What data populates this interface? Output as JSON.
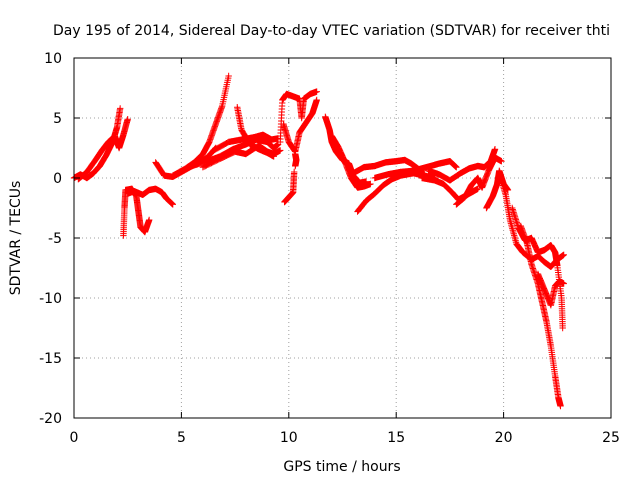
{
  "chart_data": {
    "type": "scatter",
    "title": "Day 195 of 2014, Sidereal Day-to-day VTEC variation (SDTVAR) for receiver thti",
    "xlabel": "GPS time / hours",
    "ylabel": "SDTVAR / TECUs",
    "xlim": [
      0,
      25
    ],
    "ylim": [
      -20,
      10
    ],
    "xticks": [
      0,
      5,
      10,
      15,
      20,
      25
    ],
    "yticks": [
      -20,
      -15,
      -10,
      -5,
      0,
      5,
      10
    ],
    "grid": true,
    "marker": "+",
    "color": "#ff0000",
    "series": [
      {
        "name": "SDTVAR",
        "segments": [
          [
            [
              0.0,
              0.0
            ],
            [
              0.3,
              0.3
            ],
            [
              0.6,
              0.0
            ],
            [
              0.9,
              0.4
            ],
            [
              1.2,
              1.0
            ],
            [
              1.5,
              1.9
            ],
            [
              1.8,
              3.0
            ],
            [
              2.0,
              4.2
            ],
            [
              2.15,
              5.8
            ]
          ],
          [
            [
              0.2,
              -0.1
            ],
            [
              0.6,
              0.5
            ],
            [
              1.0,
              1.5
            ],
            [
              1.3,
              2.3
            ],
            [
              1.6,
              3.0
            ],
            [
              1.9,
              3.5
            ],
            [
              2.1,
              2.5
            ],
            [
              2.3,
              3.6
            ],
            [
              2.5,
              4.9
            ]
          ],
          [
            [
              2.3,
              -4.8
            ],
            [
              2.35,
              -2.5
            ],
            [
              2.4,
              -1.0
            ],
            [
              2.7,
              -0.9
            ],
            [
              2.9,
              -1.5
            ],
            [
              3.0,
              -2.8
            ],
            [
              3.1,
              -4.1
            ],
            [
              3.3,
              -4.5
            ],
            [
              3.5,
              -3.5
            ]
          ],
          [
            [
              2.5,
              -1.3
            ],
            [
              2.8,
              -1.1
            ],
            [
              3.2,
              -1.4
            ],
            [
              3.5,
              -1.0
            ],
            [
              3.8,
              -0.9
            ],
            [
              4.1,
              -1.2
            ],
            [
              4.3,
              -1.7
            ],
            [
              4.6,
              -2.2
            ]
          ],
          [
            [
              3.8,
              1.3
            ],
            [
              4.2,
              0.2
            ],
            [
              4.6,
              0.1
            ],
            [
              5.0,
              0.5
            ],
            [
              5.4,
              0.9
            ],
            [
              5.8,
              1.3
            ],
            [
              6.2,
              1.7
            ],
            [
              6.6,
              2.5
            ]
          ],
          [
            [
              4.6,
              0.2
            ],
            [
              5.2,
              0.8
            ],
            [
              5.6,
              1.3
            ],
            [
              6.0,
              2.0
            ],
            [
              6.3,
              3.0
            ],
            [
              6.6,
              4.5
            ],
            [
              6.9,
              6.0
            ],
            [
              7.2,
              8.5
            ]
          ],
          [
            [
              5.5,
              1.0
            ],
            [
              6.2,
              1.4
            ],
            [
              6.8,
              1.8
            ],
            [
              7.4,
              2.4
            ],
            [
              8.0,
              2.8
            ],
            [
              8.5,
              3.2
            ],
            [
              9.0,
              3.0
            ],
            [
              9.3,
              2.5
            ],
            [
              9.5,
              2.8
            ]
          ],
          [
            [
              6.0,
              0.9
            ],
            [
              6.8,
              1.6
            ],
            [
              7.5,
              2.2
            ],
            [
              8.0,
              2.0
            ],
            [
              8.6,
              2.7
            ],
            [
              9.0,
              2.2
            ],
            [
              9.3,
              2.0
            ],
            [
              9.6,
              2.3
            ]
          ],
          [
            [
              6.5,
              2.3
            ],
            [
              7.2,
              3.0
            ],
            [
              7.8,
              3.2
            ],
            [
              8.4,
              3.4
            ],
            [
              8.8,
              3.6
            ],
            [
              9.2,
              3.2
            ],
            [
              9.5,
              3.3
            ]
          ],
          [
            [
              7.6,
              5.9
            ],
            [
              7.8,
              4.0
            ],
            [
              8.2,
              2.8
            ],
            [
              8.6,
              2.4
            ],
            [
              9.0,
              2.1
            ],
            [
              9.3,
              1.8
            ]
          ],
          [
            [
              9.8,
              -2.0
            ],
            [
              10.0,
              -1.6
            ],
            [
              10.2,
              -1.2
            ],
            [
              10.25,
              0.5
            ]
          ],
          [
            [
              9.6,
              3.0
            ],
            [
              9.7,
              6.5
            ],
            [
              9.9,
              7.0
            ],
            [
              10.2,
              6.8
            ],
            [
              10.5,
              6.6
            ],
            [
              10.6,
              5.0
            ],
            [
              10.7,
              6.6
            ],
            [
              11.0,
              7.0
            ],
            [
              11.3,
              7.2
            ]
          ],
          [
            [
              9.75,
              4.5
            ],
            [
              10.0,
              3.0
            ],
            [
              10.3,
              2.2
            ],
            [
              10.5,
              3.8
            ],
            [
              10.8,
              4.6
            ],
            [
              11.1,
              5.4
            ],
            [
              11.3,
              6.5
            ]
          ],
          [
            [
              10.3,
              2.0
            ],
            [
              10.35,
              1.5
            ],
            [
              10.3,
              1.0
            ]
          ],
          [
            [
              11.7,
              5.1
            ],
            [
              11.9,
              4.0
            ],
            [
              12.0,
              3.0
            ],
            [
              12.2,
              2.2
            ],
            [
              12.5,
              1.5
            ],
            [
              12.8,
              1.2
            ],
            [
              13.0,
              0.2
            ],
            [
              13.3,
              -0.4
            ],
            [
              13.6,
              -0.3
            ]
          ],
          [
            [
              12.0,
              3.5
            ],
            [
              12.3,
              2.6
            ],
            [
              12.6,
              1.4
            ],
            [
              12.9,
              0.0
            ],
            [
              13.2,
              -0.8
            ],
            [
              13.5,
              -0.7
            ],
            [
              13.8,
              -0.5
            ]
          ],
          [
            [
              13.0,
              0.4
            ],
            [
              13.5,
              0.9
            ],
            [
              14.0,
              1.0
            ],
            [
              14.5,
              1.3
            ],
            [
              15.0,
              1.4
            ],
            [
              15.4,
              1.5
            ],
            [
              15.7,
              1.2
            ],
            [
              16.0,
              0.8
            ],
            [
              16.2,
              0.5
            ]
          ],
          [
            [
              13.2,
              -2.8
            ],
            [
              13.6,
              -1.9
            ],
            [
              14.0,
              -1.3
            ],
            [
              14.4,
              -0.6
            ],
            [
              14.8,
              -0.1
            ],
            [
              15.2,
              0.2
            ],
            [
              15.8,
              0.4
            ],
            [
              16.3,
              0.2
            ],
            [
              16.8,
              0.0
            ]
          ],
          [
            [
              14.0,
              0.0
            ],
            [
              14.6,
              0.3
            ],
            [
              15.2,
              0.5
            ],
            [
              15.8,
              0.6
            ],
            [
              16.4,
              0.9
            ],
            [
              17.0,
              1.2
            ],
            [
              17.5,
              1.4
            ],
            [
              17.8,
              0.9
            ]
          ],
          [
            [
              16.2,
              0.0
            ],
            [
              16.8,
              -0.2
            ],
            [
              17.2,
              -0.5
            ],
            [
              17.6,
              -1.2
            ],
            [
              17.9,
              -1.8
            ],
            [
              18.2,
              -1.5
            ],
            [
              18.5,
              -1.2
            ],
            [
              18.8,
              -0.9
            ]
          ],
          [
            [
              16.5,
              0.6
            ],
            [
              17.0,
              0.3
            ],
            [
              17.5,
              -0.2
            ],
            [
              18.0,
              0.4
            ],
            [
              18.4,
              0.8
            ],
            [
              18.8,
              1.0
            ],
            [
              19.1,
              0.9
            ],
            [
              19.4,
              1.4
            ],
            [
              19.6,
              2.4
            ]
          ],
          [
            [
              17.8,
              -2.2
            ],
            [
              18.2,
              -1.6
            ],
            [
              18.5,
              -0.6
            ],
            [
              18.8,
              0.0
            ],
            [
              19.0,
              -0.8
            ],
            [
              19.3,
              0.6
            ],
            [
              19.6,
              1.7
            ],
            [
              19.9,
              1.4
            ]
          ],
          [
            [
              19.2,
              -2.5
            ],
            [
              19.5,
              -1.5
            ],
            [
              19.7,
              -0.5
            ],
            [
              19.8,
              0.6
            ],
            [
              20.0,
              -0.5
            ],
            [
              20.2,
              -1.0
            ]
          ],
          [
            [
              19.8,
              0.4
            ],
            [
              20.1,
              -1.4
            ],
            [
              20.3,
              -3.5
            ],
            [
              20.6,
              -5.5
            ],
            [
              20.9,
              -6.2
            ],
            [
              21.3,
              -6.8
            ],
            [
              21.6,
              -6.5
            ],
            [
              21.9,
              -7.0
            ],
            [
              22.2,
              -7.4
            ],
            [
              22.5,
              -6.8
            ],
            [
              22.8,
              -6.4
            ]
          ],
          [
            [
              20.4,
              -2.5
            ],
            [
              20.7,
              -4.2
            ],
            [
              21.0,
              -5.2
            ],
            [
              21.3,
              -5.0
            ],
            [
              21.6,
              -6.2
            ],
            [
              21.9,
              -6.0
            ],
            [
              22.2,
              -5.6
            ],
            [
              22.4,
              -6.2
            ],
            [
              22.5,
              -7.3
            ],
            [
              22.7,
              -10.0
            ],
            [
              22.75,
              -12.5
            ]
          ],
          [
            [
              20.8,
              -4.0
            ],
            [
              21.1,
              -5.5
            ],
            [
              21.3,
              -7.2
            ],
            [
              21.6,
              -8.8
            ],
            [
              21.8,
              -10.4
            ],
            [
              22.0,
              -12.0
            ],
            [
              22.2,
              -14.0
            ],
            [
              22.4,
              -16.5
            ],
            [
              22.55,
              -18.3
            ],
            [
              22.65,
              -19.0
            ]
          ],
          [
            [
              21.6,
              -8.0
            ],
            [
              21.9,
              -9.3
            ],
            [
              22.2,
              -10.6
            ],
            [
              22.4,
              -9.0
            ],
            [
              22.6,
              -8.6
            ],
            [
              22.8,
              -8.8
            ]
          ]
        ]
      }
    ]
  }
}
